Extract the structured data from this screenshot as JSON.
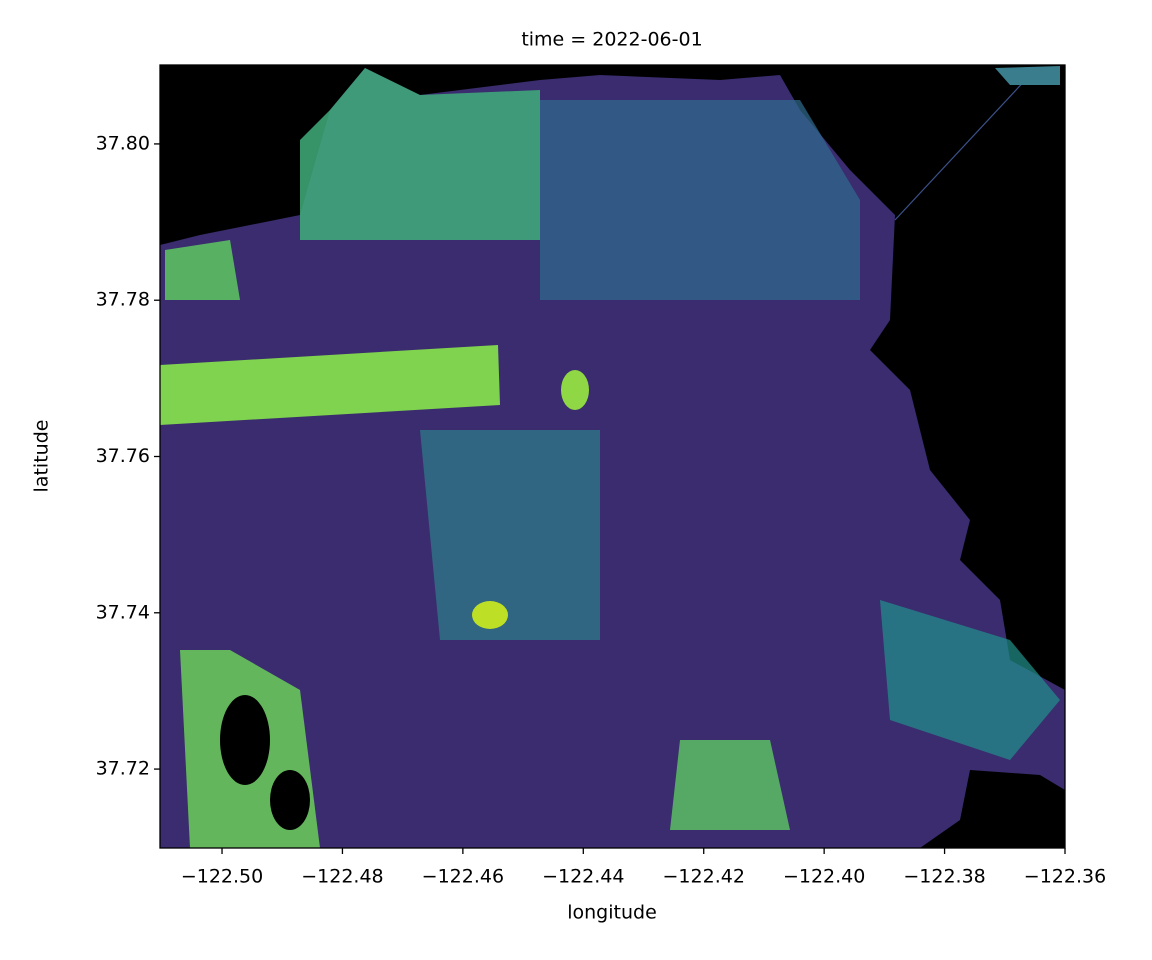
{
  "chart_data": {
    "type": "raster",
    "title": "time = 2022-06-01",
    "x_label": "longitude",
    "y_label": "latitude",
    "xlim": [
      -122.5103,
      -122.36
    ],
    "ylim": [
      37.7099,
      37.8101
    ],
    "xticks": [
      {
        "value": -122.5,
        "label": "−122.50"
      },
      {
        "value": -122.48,
        "label": "−122.48"
      },
      {
        "value": -122.46,
        "label": "−122.46"
      },
      {
        "value": -122.44,
        "label": "−122.44"
      },
      {
        "value": -122.42,
        "label": "−122.42"
      },
      {
        "value": -122.4,
        "label": "−122.40"
      },
      {
        "value": -122.38,
        "label": "−122.38"
      },
      {
        "value": -122.36,
        "label": "−122.36"
      }
    ],
    "yticks": [
      37.72,
      37.74,
      37.76,
      37.78,
      {
        "value": 37.8,
        "label": "37.80"
      }
    ]
  }
}
